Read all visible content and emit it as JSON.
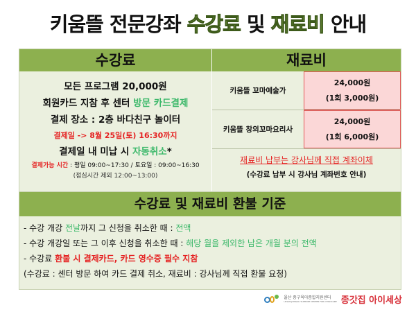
{
  "title": {
    "part1": "키움뜰 전문강좌 ",
    "highlight1": "수강료",
    "part2": " 및 ",
    "highlight2": "재료비",
    "part3": " 안내"
  },
  "tuition": {
    "header": "수강료",
    "line1": "모든 프로그램 20,000원",
    "line2_prefix": "회원카드 지참 후 센터 ",
    "line2_highlight": "방문 카드결제",
    "line3": "결제 장소 : 2층 바다친구 놀이터",
    "line4": "결제일 -> 8월 25일(토) 16:30까지",
    "line5_prefix": "결제일 내 미납 시 ",
    "line5_highlight": "자동취소",
    "line5_suffix": "*",
    "hours_label": "결제가능 시간",
    "hours": " : 평일 09:00~17:30 / 토요일 : 09:00~16:30",
    "lunch": "(점심시간 제외 12:00~13:00)"
  },
  "materials": {
    "header": "재료비",
    "rows": [
      {
        "name": "키움뜰 꼬마예술가",
        "total": "24,000원",
        "per": "(1회 3,000원)"
      },
      {
        "name": "키움뜰 창의꼬마요리사",
        "total": "24,000원",
        "per": "(1회 6,000원)"
      }
    ],
    "note": "재료비 납부는 강사님께 직접 계좌이체",
    "subnote": "(수강료 납부 시 강사님 계좌번호 안내)"
  },
  "refund": {
    "header": "수강료 및 재료비 환불 기준",
    "item1": {
      "a": "- 수강 개강 ",
      "b": "전날",
      "c": "까지 그 신청을 취소한 때 : ",
      "d": "전액"
    },
    "item2": {
      "a": "- 수강 개강일 또는 그 이후 신청을 취소한 때 : ",
      "b": "해당 월을 제외한 남은 개월 분의 전액"
    },
    "item3": {
      "a": "- 수강료 ",
      "b": "환불 시 결제카드, 카드 영수증 필수 지참"
    },
    "item4": " (수강료 : 센터 방문 하여 카드 결제 취소, 재료비 : 강사님께 직접 환불 요청)"
  },
  "footer": {
    "center_name": "울산 중구육아종합지원센터",
    "center_name_en": "ULSAN JUNGGU SUPPORT CENTER FOR CHILDCARE",
    "brand": "종갓집 아이세상"
  },
  "colors": {
    "header_green": "#8db04f",
    "body_bg": "#ebf0df",
    "accent_green": "#3cb86a",
    "red": "#e52222",
    "pink": "#fbd7d7"
  }
}
